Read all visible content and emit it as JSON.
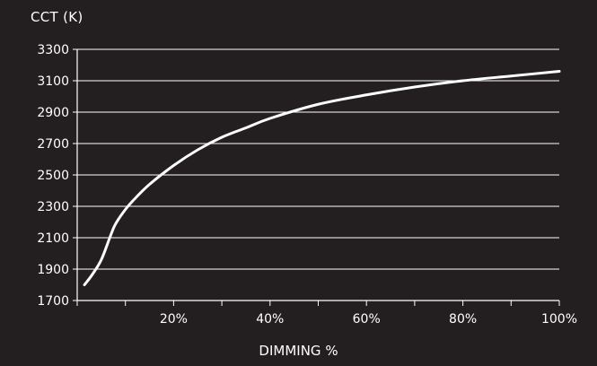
{
  "chart_data": {
    "type": "line",
    "title": "",
    "ylabel": "CCT (K)",
    "xlabel": "DIMMING %",
    "xlim": [
      0,
      100
    ],
    "ylim": [
      1700,
      3300
    ],
    "x_ticks": [
      20,
      40,
      60,
      80,
      100
    ],
    "x_tick_labels": [
      "20%",
      "40%",
      "60%",
      "80%",
      "100%"
    ],
    "y_ticks": [
      1700,
      1900,
      2100,
      2300,
      2500,
      2700,
      2900,
      3100,
      3300
    ],
    "y_tick_labels": [
      "1700",
      "1900",
      "2100",
      "2300",
      "2500",
      "2700",
      "2900",
      "3100",
      "3300"
    ],
    "grid": "horizontal",
    "colors": {
      "background": "#231f20",
      "line": "#ffffff",
      "grid": "#ffffff",
      "text": "#ffffff"
    },
    "series": [
      {
        "x": [
          1.5,
          3,
          5,
          7,
          8,
          10,
          12,
          15,
          20,
          25,
          30,
          35,
          40,
          50,
          60,
          70,
          80,
          90,
          100
        ],
        "y": [
          1800,
          1860,
          1960,
          2120,
          2190,
          2280,
          2350,
          2440,
          2560,
          2660,
          2740,
          2800,
          2860,
          2950,
          3010,
          3060,
          3100,
          3130,
          3160
        ]
      }
    ]
  }
}
